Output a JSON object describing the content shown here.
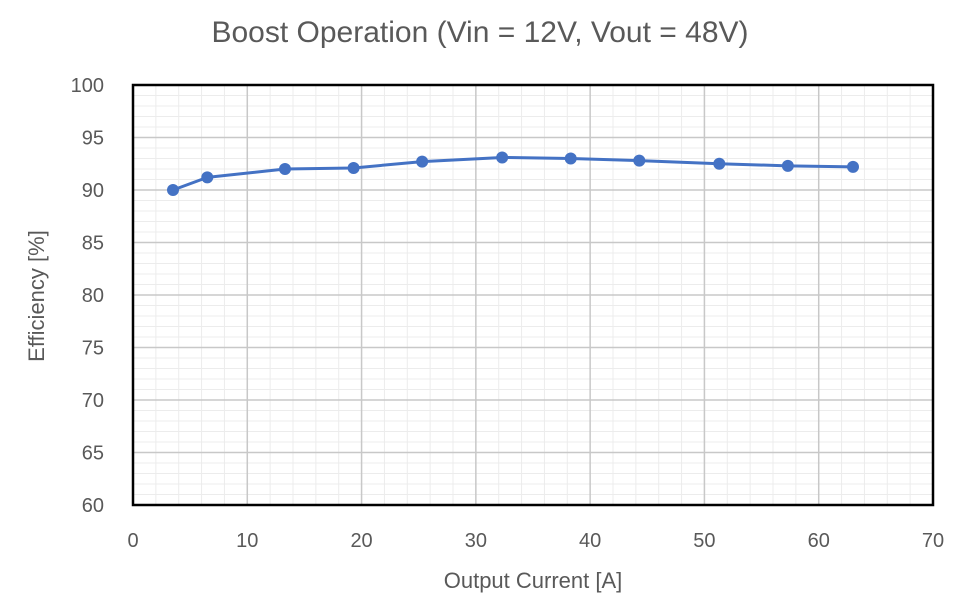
{
  "chart_data": {
    "type": "line",
    "title": "Boost Operation (Vin = 12V, Vout = 48V)",
    "xlabel": "Output Current [A]",
    "ylabel": "Efficiency [%]",
    "xlim": [
      0,
      70
    ],
    "ylim": [
      60,
      100
    ],
    "xticks": [
      0,
      10,
      20,
      30,
      40,
      50,
      60,
      70
    ],
    "yticks": [
      60,
      65,
      70,
      75,
      80,
      85,
      90,
      95,
      100
    ],
    "grid": true,
    "legend": "none",
    "series": [
      {
        "color": "#4472C4",
        "x": [
          3.5,
          6.5,
          13.3,
          19.3,
          25.3,
          32.3,
          38.3,
          44.3,
          51.3,
          57.3,
          63.0
        ],
        "y": [
          90.0,
          91.2,
          92.0,
          92.1,
          92.7,
          93.1,
          93.0,
          92.8,
          92.5,
          92.3,
          92.2
        ]
      }
    ]
  }
}
